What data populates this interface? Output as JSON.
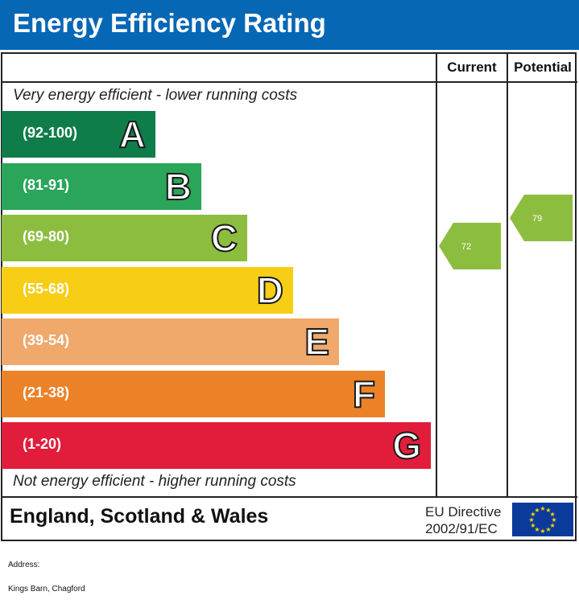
{
  "header": {
    "title": "Energy Efficiency Rating"
  },
  "columns": {
    "current": "Current",
    "potential": "Potential"
  },
  "notes": {
    "top": "Very energy efficient - lower running costs",
    "bottom": "Not energy efficient - higher running costs"
  },
  "footer": {
    "country": "England, Scotland & Wales",
    "eu_line1": "EU Directive",
    "eu_line2": "2002/91/EC"
  },
  "address": {
    "label": "Address:",
    "value": "Kings Barn, Chagford"
  },
  "chart_data": {
    "type": "bar",
    "title": "Energy Efficiency Rating",
    "bands": [
      {
        "letter": "A",
        "range": "(92-100)",
        "color": "#0f7d4a"
      },
      {
        "letter": "B",
        "range": "(81-91)",
        "color": "#2aa55a"
      },
      {
        "letter": "C",
        "range": "(69-80)",
        "color": "#8dbd3f"
      },
      {
        "letter": "D",
        "range": "(55-68)",
        "color": "#f7cd16"
      },
      {
        "letter": "E",
        "range": "(39-54)",
        "color": "#f0a86b"
      },
      {
        "letter": "F",
        "range": "(21-38)",
        "color": "#ec8228"
      },
      {
        "letter": "G",
        "range": "(1-20)",
        "color": "#e21d3c"
      }
    ],
    "current": {
      "value": 72,
      "band": "C",
      "color": "#8dbd3f"
    },
    "potential": {
      "value": 79,
      "band": "C",
      "color": "#8dbd3f"
    }
  }
}
